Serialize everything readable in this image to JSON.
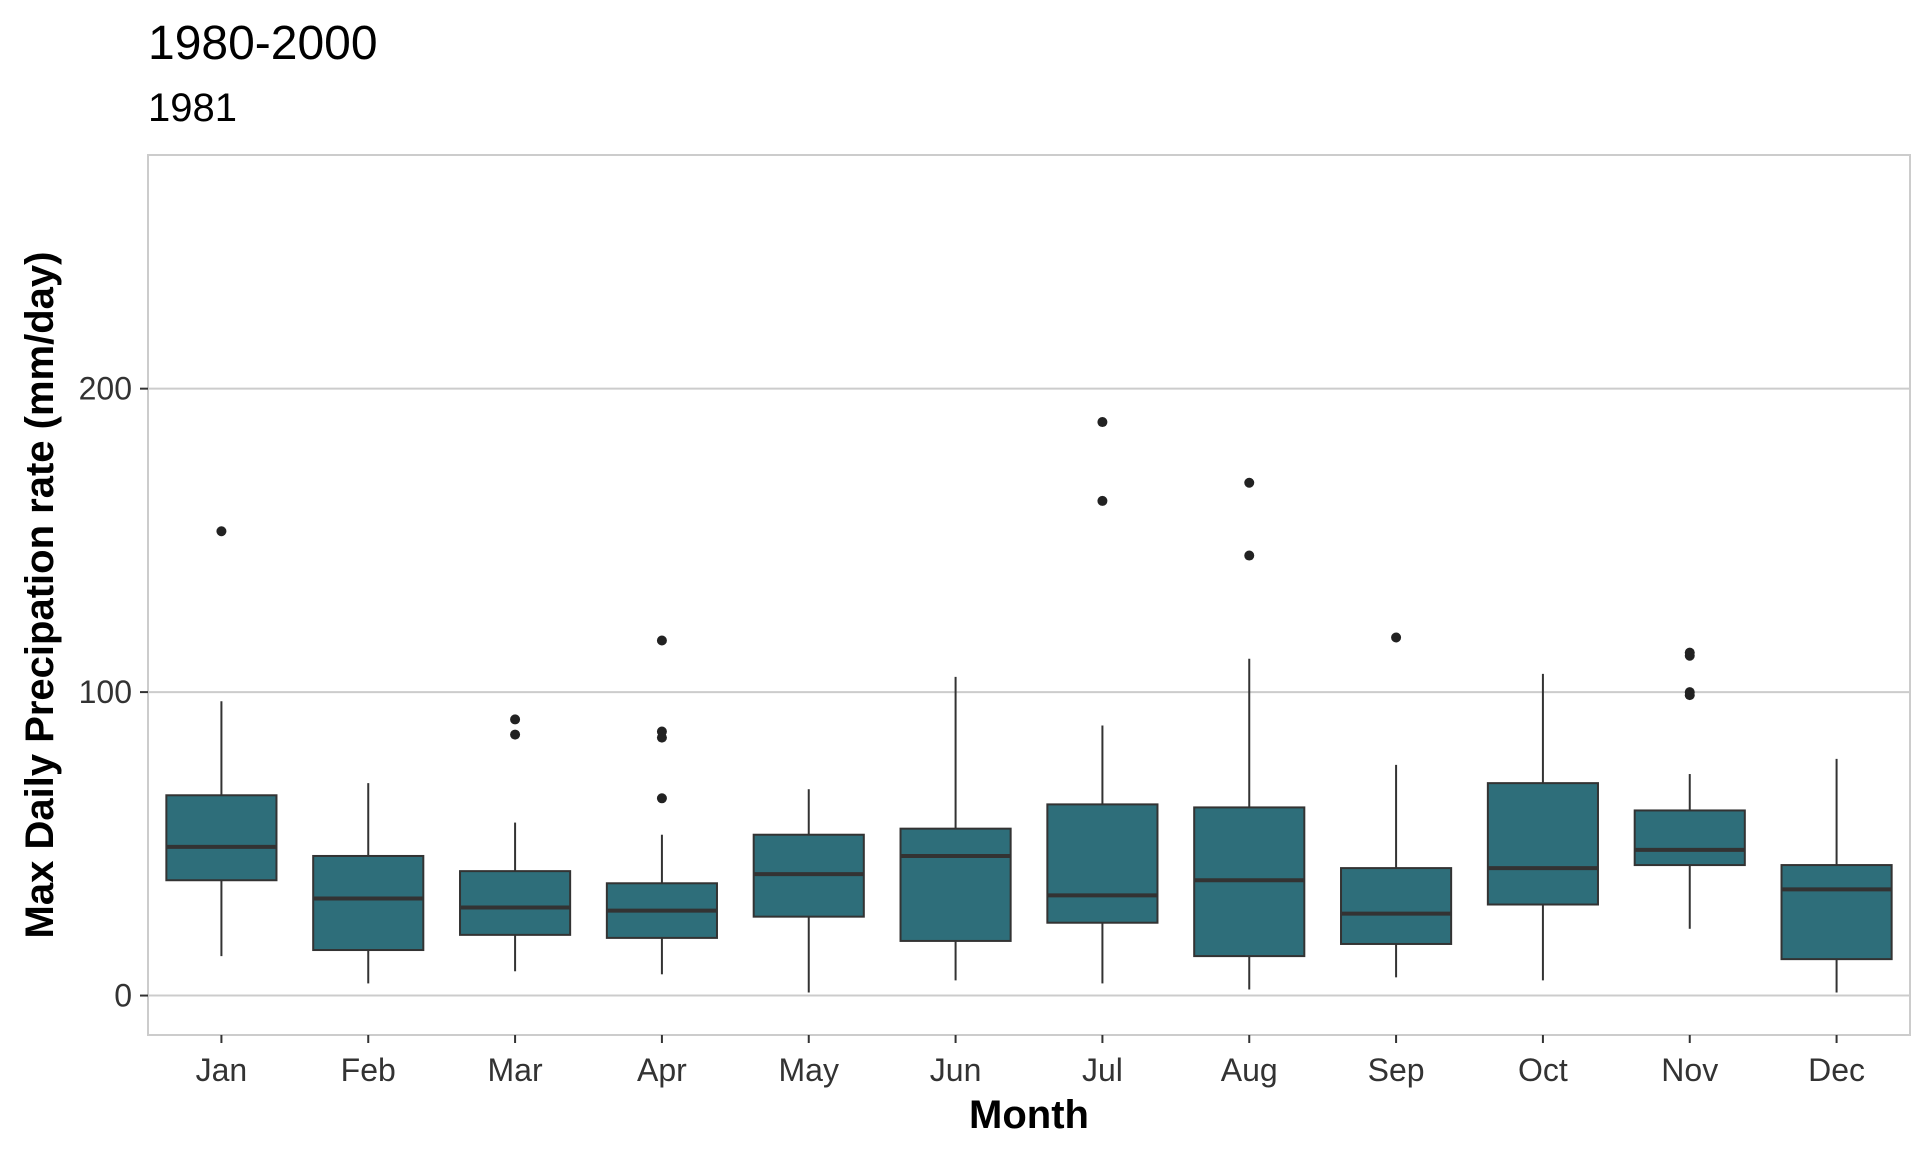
{
  "title": "1980-2000",
  "subtitle": "1981",
  "chart_data": {
    "type": "box",
    "title": "1980-2000",
    "subtitle": "1981",
    "xlabel": "Month",
    "ylabel": "Max Daily Precipation rate (mm/day)",
    "ylim": [
      -13,
      277
    ],
    "y_ticks": [
      0,
      100,
      200
    ],
    "grid": "horizontal major lines",
    "fill_color": "#2e6e7a",
    "categories": [
      "Jan",
      "Feb",
      "Mar",
      "Apr",
      "May",
      "Jun",
      "Jul",
      "Aug",
      "Sep",
      "Oct",
      "Nov",
      "Dec"
    ],
    "boxes": [
      {
        "whisker_low": 13,
        "q1": 38,
        "median": 49,
        "q3": 66,
        "whisker_high": 97,
        "outliers": [
          153
        ]
      },
      {
        "whisker_low": 4,
        "q1": 15,
        "median": 32,
        "q3": 46,
        "whisker_high": 70,
        "outliers": []
      },
      {
        "whisker_low": 8,
        "q1": 20,
        "median": 29,
        "q3": 41,
        "whisker_high": 57,
        "outliers": [
          86,
          91
        ]
      },
      {
        "whisker_low": 7,
        "q1": 19,
        "median": 28,
        "q3": 37,
        "whisker_high": 53,
        "outliers": [
          65,
          85,
          87,
          117
        ]
      },
      {
        "whisker_low": 1,
        "q1": 26,
        "median": 40,
        "q3": 53,
        "whisker_high": 68,
        "outliers": []
      },
      {
        "whisker_low": 5,
        "q1": 18,
        "median": 46,
        "q3": 55,
        "whisker_high": 105,
        "outliers": []
      },
      {
        "whisker_low": 4,
        "q1": 24,
        "median": 33,
        "q3": 63,
        "whisker_high": 89,
        "outliers": [
          163,
          189
        ]
      },
      {
        "whisker_low": 2,
        "q1": 13,
        "median": 38,
        "q3": 62,
        "whisker_high": 111,
        "outliers": [
          145,
          169
        ]
      },
      {
        "whisker_low": 6,
        "q1": 17,
        "median": 27,
        "q3": 42,
        "whisker_high": 76,
        "outliers": [
          118
        ]
      },
      {
        "whisker_low": 5,
        "q1": 30,
        "median": 42,
        "q3": 70,
        "whisker_high": 106,
        "outliers": []
      },
      {
        "whisker_low": 22,
        "q1": 43,
        "median": 48,
        "q3": 61,
        "whisker_high": 73,
        "outliers": [
          99,
          100,
          112,
          113
        ]
      },
      {
        "whisker_low": 1,
        "q1": 12,
        "median": 35,
        "q3": 43,
        "whisker_high": 78,
        "outliers": []
      }
    ]
  }
}
